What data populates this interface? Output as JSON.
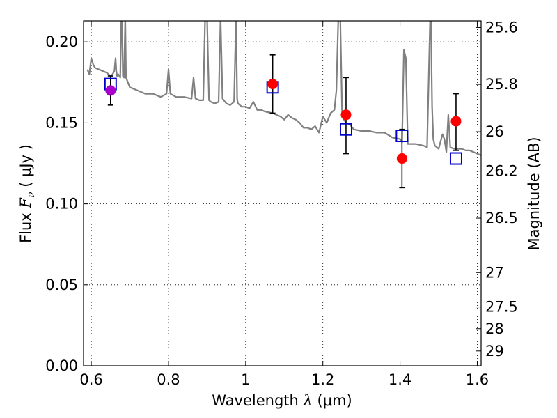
{
  "chart_data": {
    "type": "scatter",
    "xlabel": "Wavelength",
    "xlabel_symbol": "λ",
    "xlabel_units": "(μm)",
    "ylabel": "Flux",
    "ylabel_symbol": "F",
    "ylabel_subscript": "ν",
    "ylabel_units": "( μJy )",
    "y2label": "Magnitude (AB)",
    "xlim": [
      0.58,
      1.61
    ],
    "ylim": [
      0.0,
      0.213
    ],
    "grid": true,
    "x_ticks": [
      0.6,
      0.8,
      1.0,
      1.2,
      1.4,
      1.6
    ],
    "x_tick_labels": [
      "0.6",
      "0.8",
      "1",
      "1.2",
      "1.4",
      "1.6"
    ],
    "y_ticks": [
      0.0,
      0.05,
      0.1,
      0.15,
      0.2
    ],
    "y_tick_labels": [
      "0.00",
      "0.05",
      "0.10",
      "0.15",
      "0.20"
    ],
    "y2_ticks": [
      {
        "label": "25.6",
        "mag": 25.6
      },
      {
        "label": "25.8",
        "mag": 25.8
      },
      {
        "label": "26",
        "mag": 26.0
      },
      {
        "label": "26.2",
        "mag": 26.2
      },
      {
        "label": "26.5",
        "mag": 26.5
      },
      {
        "label": "27",
        "mag": 27.0
      },
      {
        "label": "27.5",
        "mag": 27.5
      },
      {
        "label": "28",
        "mag": 28.0
      },
      {
        "label": "29",
        "mag": 29.0
      }
    ],
    "series": [
      {
        "kind": "line",
        "color": "#808080",
        "x": [
          0.59,
          0.595,
          0.6,
          0.605,
          0.61,
          0.62,
          0.63,
          0.64,
          0.645,
          0.65,
          0.655,
          0.66,
          0.663,
          0.665,
          0.667,
          0.67,
          0.675,
          0.678,
          0.68,
          0.682,
          0.685,
          0.688,
          0.69,
          0.7,
          0.72,
          0.74,
          0.76,
          0.78,
          0.795,
          0.8,
          0.805,
          0.82,
          0.84,
          0.86,
          0.865,
          0.87,
          0.88,
          0.89,
          0.895,
          0.9,
          0.905,
          0.91,
          0.92,
          0.93,
          0.935,
          0.94,
          0.95,
          0.96,
          0.97,
          0.975,
          0.978,
          0.98,
          0.99,
          1.0,
          1.01,
          1.02,
          1.03,
          1.04,
          1.05,
          1.07,
          1.09,
          1.1,
          1.11,
          1.12,
          1.13,
          1.14,
          1.15,
          1.16,
          1.17,
          1.18,
          1.19,
          1.2,
          1.21,
          1.22,
          1.23,
          1.235,
          1.24,
          1.245,
          1.25,
          1.255,
          1.26,
          1.27,
          1.28,
          1.3,
          1.32,
          1.34,
          1.36,
          1.38,
          1.4,
          1.405,
          1.41,
          1.415,
          1.42,
          1.44,
          1.46,
          1.47,
          1.478,
          1.48,
          1.483,
          1.486,
          1.49,
          1.5,
          1.51,
          1.515,
          1.52,
          1.525,
          1.53,
          1.54,
          1.55,
          1.56,
          1.57,
          1.58,
          1.59,
          1.6,
          1.61
        ],
        "y": [
          0.183,
          0.18,
          0.19,
          0.186,
          0.184,
          0.183,
          0.182,
          0.181,
          0.18,
          0.179,
          0.18,
          0.182,
          0.19,
          0.182,
          0.179,
          0.18,
          0.178,
          0.215,
          0.215,
          0.179,
          0.178,
          0.215,
          0.178,
          0.172,
          0.17,
          0.168,
          0.168,
          0.166,
          0.168,
          0.183,
          0.168,
          0.166,
          0.166,
          0.165,
          0.178,
          0.165,
          0.164,
          0.164,
          0.215,
          0.215,
          0.164,
          0.163,
          0.162,
          0.163,
          0.215,
          0.165,
          0.162,
          0.161,
          0.163,
          0.215,
          0.165,
          0.162,
          0.16,
          0.16,
          0.159,
          0.163,
          0.158,
          0.158,
          0.157,
          0.156,
          0.154,
          0.152,
          0.155,
          0.153,
          0.152,
          0.15,
          0.147,
          0.147,
          0.146,
          0.148,
          0.144,
          0.154,
          0.15,
          0.156,
          0.158,
          0.17,
          0.215,
          0.215,
          0.155,
          0.152,
          0.15,
          0.149,
          0.146,
          0.145,
          0.145,
          0.144,
          0.144,
          0.141,
          0.14,
          0.138,
          0.195,
          0.19,
          0.137,
          0.137,
          0.136,
          0.135,
          0.215,
          0.215,
          0.16,
          0.14,
          0.136,
          0.134,
          0.143,
          0.14,
          0.132,
          0.155,
          0.135,
          0.134,
          0.134,
          0.134,
          0.133,
          0.133,
          0.132,
          0.131,
          0.13
        ]
      },
      {
        "kind": "errorbar",
        "color": "#000000",
        "points": [
          {
            "x": 0.65,
            "low": 0.161,
            "high": 0.179
          },
          {
            "x": 1.07,
            "low": 0.156,
            "high": 0.192
          },
          {
            "x": 1.26,
            "low": 0.131,
            "high": 0.178
          },
          {
            "x": 1.405,
            "low": 0.11,
            "high": 0.146
          },
          {
            "x": 1.545,
            "low": 0.133,
            "high": 0.168
          }
        ]
      },
      {
        "kind": "markers",
        "marker": "square",
        "color": "#0000cc",
        "x": [
          0.65,
          1.07,
          1.26,
          1.405,
          1.545
        ],
        "y": [
          0.174,
          0.172,
          0.146,
          0.142,
          0.128
        ]
      },
      {
        "kind": "markers",
        "marker": "circle",
        "color": "#ff0000",
        "x": [
          1.07,
          1.26,
          1.405,
          1.545
        ],
        "y": [
          0.174,
          0.155,
          0.128,
          0.151
        ]
      },
      {
        "kind": "markers",
        "marker": "circle",
        "color": "#aa00cc",
        "x": [
          0.65
        ],
        "y": [
          0.17
        ]
      }
    ]
  }
}
